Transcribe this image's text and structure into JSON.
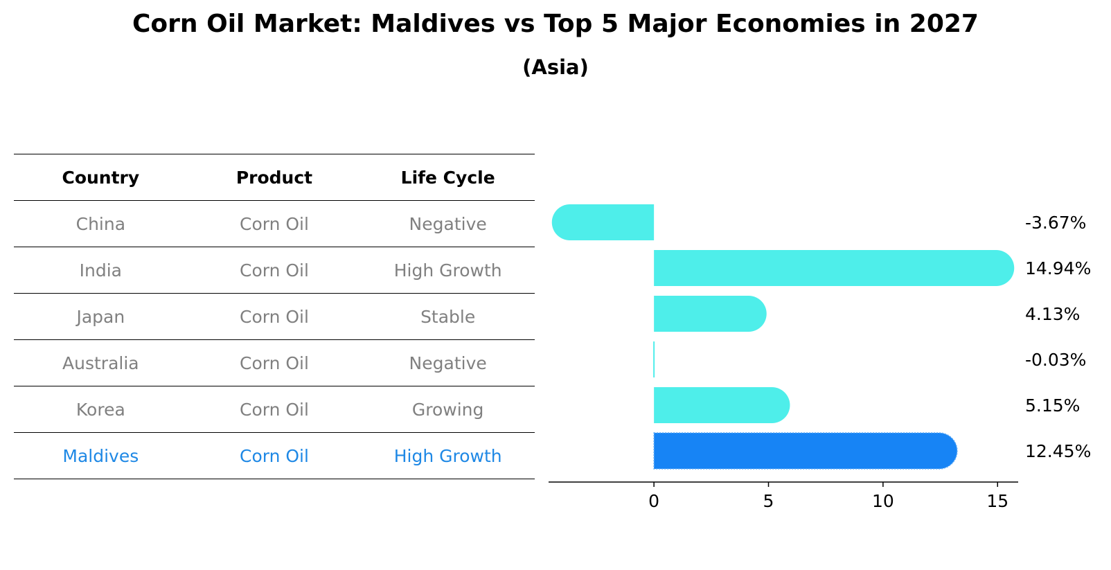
{
  "title": "Corn Oil Market: Maldives vs Top 5 Major Economies in 2027",
  "subtitle": "(Asia)",
  "table": {
    "headers": [
      "Country",
      "Product",
      "Life Cycle"
    ],
    "rows": [
      {
        "country": "China",
        "product": "Corn Oil",
        "life_cycle": "Negative"
      },
      {
        "country": "India",
        "product": "Corn Oil",
        "life_cycle": "High Growth"
      },
      {
        "country": "Japan",
        "product": "Corn Oil",
        "life_cycle": "Stable"
      },
      {
        "country": "Australia",
        "product": "Corn Oil",
        "life_cycle": "Negative"
      },
      {
        "country": "Korea",
        "product": "Corn Oil",
        "life_cycle": "Growing"
      },
      {
        "country": "Maldives",
        "product": "Corn Oil",
        "life_cycle": "High Growth"
      }
    ]
  },
  "colors": {
    "bar": "#4eeeea",
    "highlight_bar": "#1784f5",
    "highlight_text": "#1e88e5",
    "muted_text": "#808080"
  },
  "chart_data": {
    "type": "bar",
    "orientation": "horizontal",
    "categories": [
      "China",
      "India",
      "Japan",
      "Australia",
      "Korea",
      "Maldives"
    ],
    "values": [
      -3.67,
      14.94,
      4.13,
      -0.03,
      5.15,
      12.45
    ],
    "value_labels": [
      "-3.67%",
      "14.94%",
      "4.13%",
      "-0.03%",
      "5.15%",
      "12.45%"
    ],
    "highlight": "Maldives",
    "xlim": [
      -4.6,
      15.9
    ],
    "xticks": [
      0,
      5,
      10,
      15
    ],
    "grid": false
  }
}
